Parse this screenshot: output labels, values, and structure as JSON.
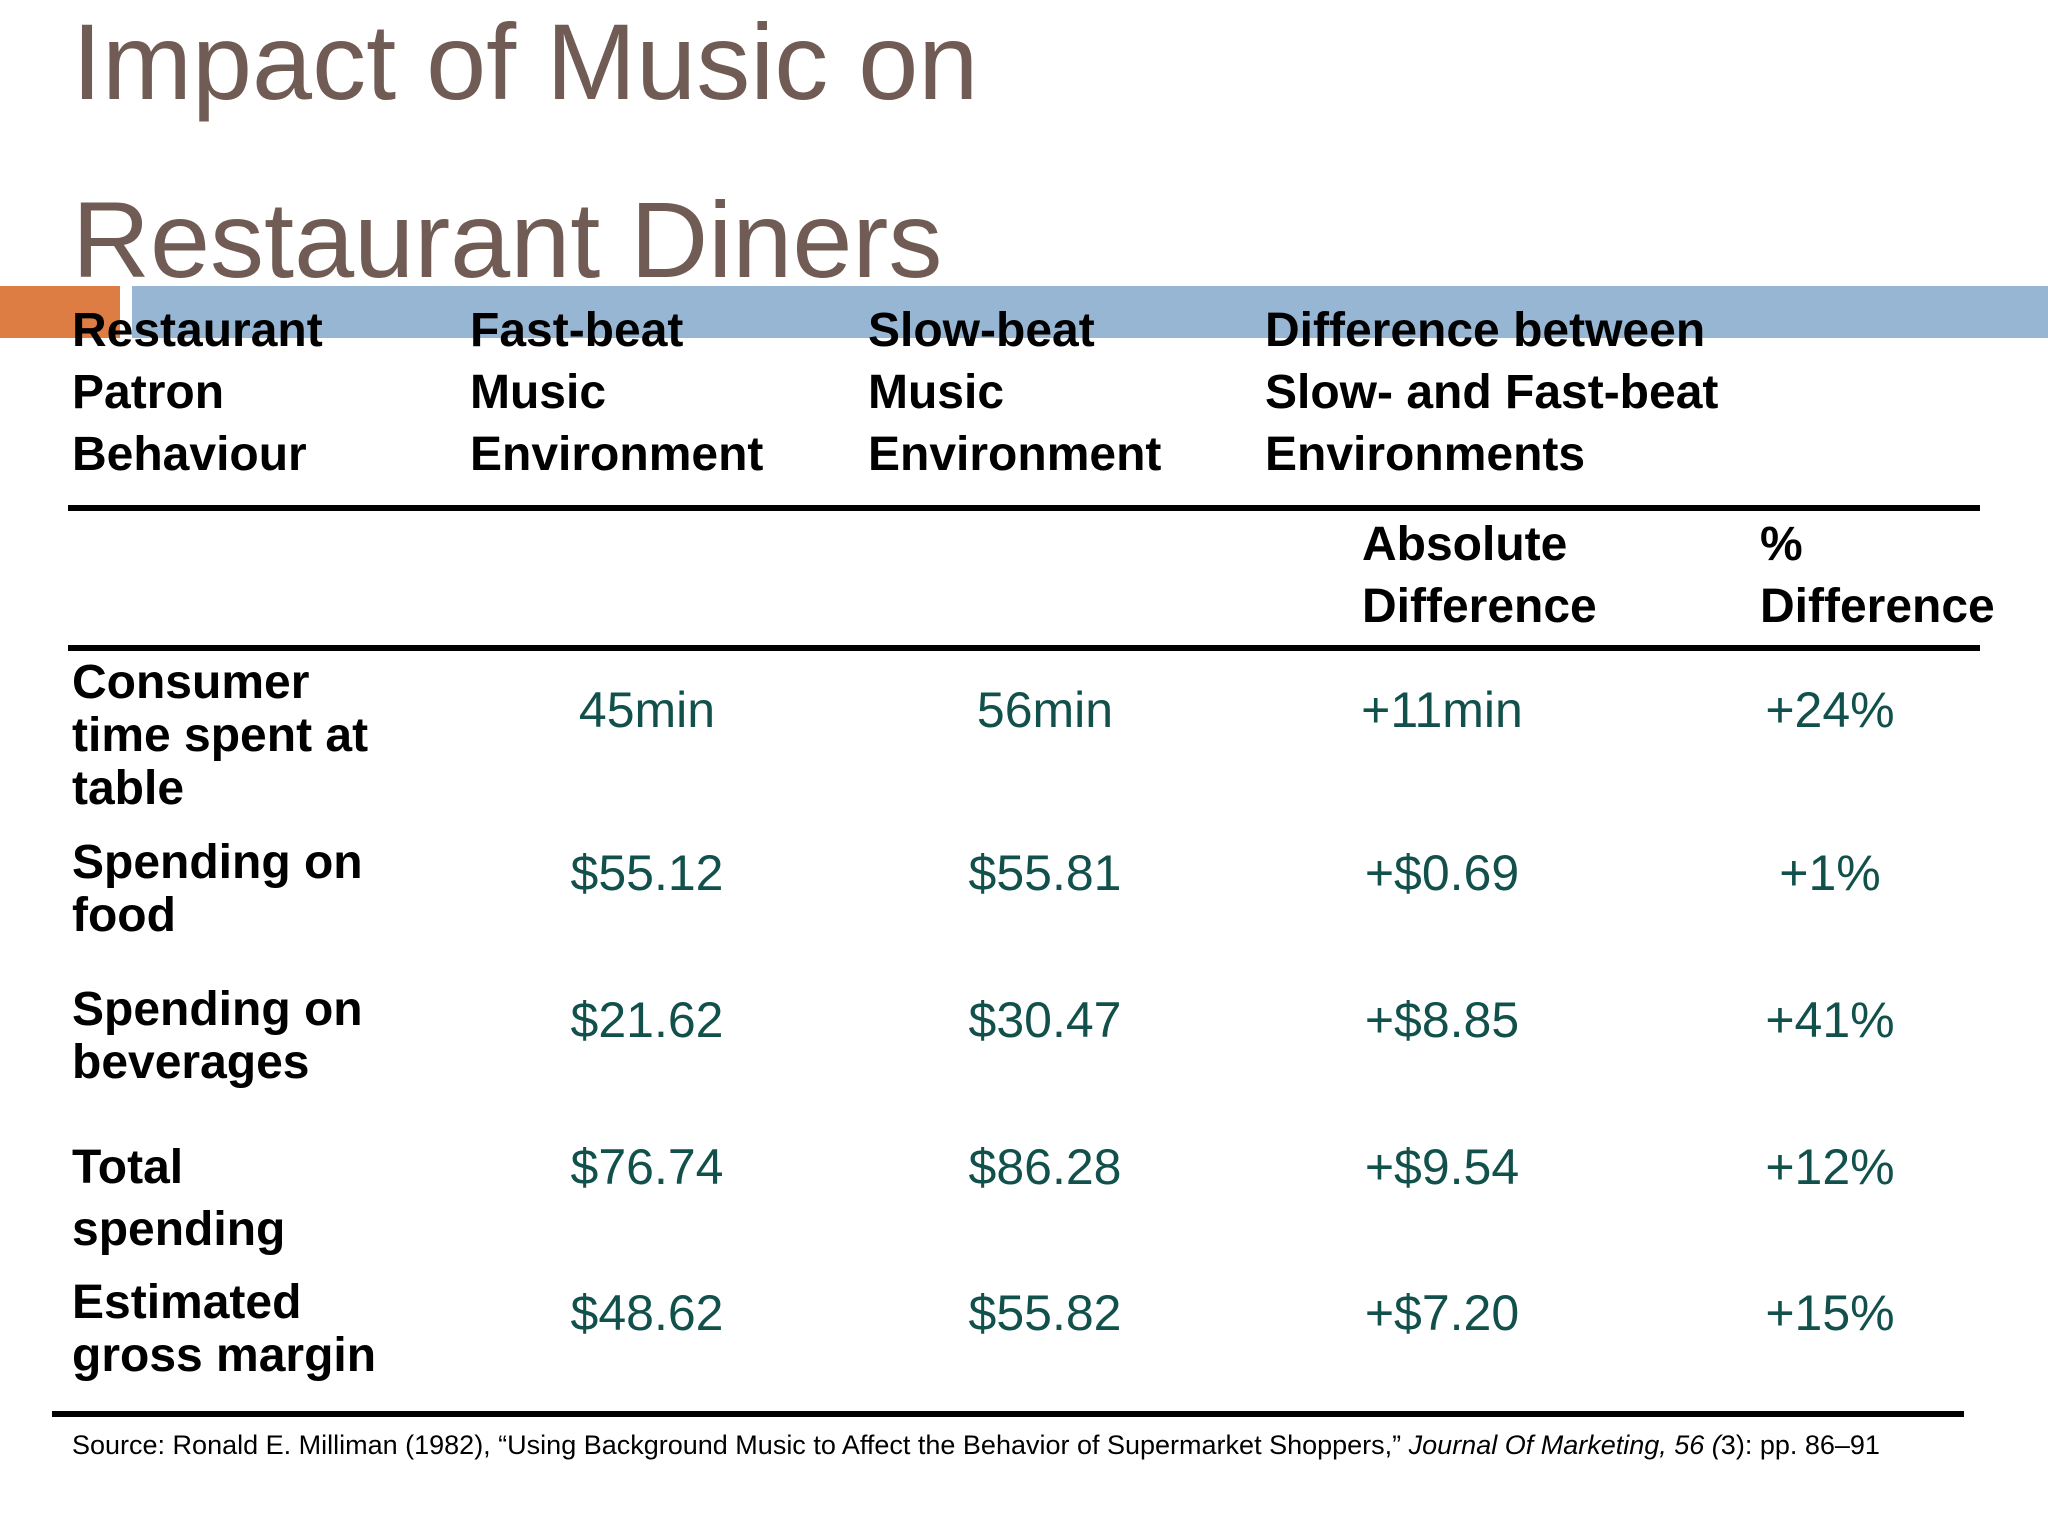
{
  "title": {
    "line1": "Impact of Music on",
    "line2": "Restaurant Diners"
  },
  "table": {
    "headers": {
      "behaviour": "Restaurant\nPatron\nBehaviour",
      "fast": "Fast-beat\nMusic\nEnvironment",
      "slow": "Slow-beat\nMusic\nEnvironment",
      "difference": "Difference between\nSlow- and Fast-beat\nEnvironments",
      "absolute": "Absolute\nDifference",
      "percent": "%\nDifference"
    },
    "rows": [
      {
        "label": "Consumer\ntime spent at\ntable",
        "fast": "45min",
        "slow": "56min",
        "absolute": "+11min",
        "percent": "+24%"
      },
      {
        "label": "Spending on\nfood",
        "fast": "$55.12",
        "slow": "$55.81",
        "absolute": "+$0.69",
        "percent": "+1%"
      },
      {
        "label": "Spending on\nbeverages",
        "fast": "$21.62",
        "slow": "$30.47",
        "absolute": "+$8.85",
        "percent": "+41%"
      },
      {
        "label": "Total\nspending",
        "fast": "$76.74",
        "slow": "$86.28",
        "absolute": "+$9.54",
        "percent": "+12%"
      },
      {
        "label": "Estimated\ngross margin",
        "fast": "$48.62",
        "slow": "$55.82",
        "absolute": "+$7.20",
        "percent": "+15%"
      }
    ]
  },
  "source": {
    "prefix": "Source: Ronald E. Milliman (1982), “Using Background Music to Affect the Behavior of Supermarket Shoppers,” ",
    "journal": "Journal Of Marketing, 56 (",
    "issue": "3",
    "suffix": "): pp. 86–91"
  },
  "colors": {
    "title": "#705c54",
    "accent_orange": "#de7d43",
    "accent_blue": "#97b6d3",
    "values": "#12514b"
  }
}
